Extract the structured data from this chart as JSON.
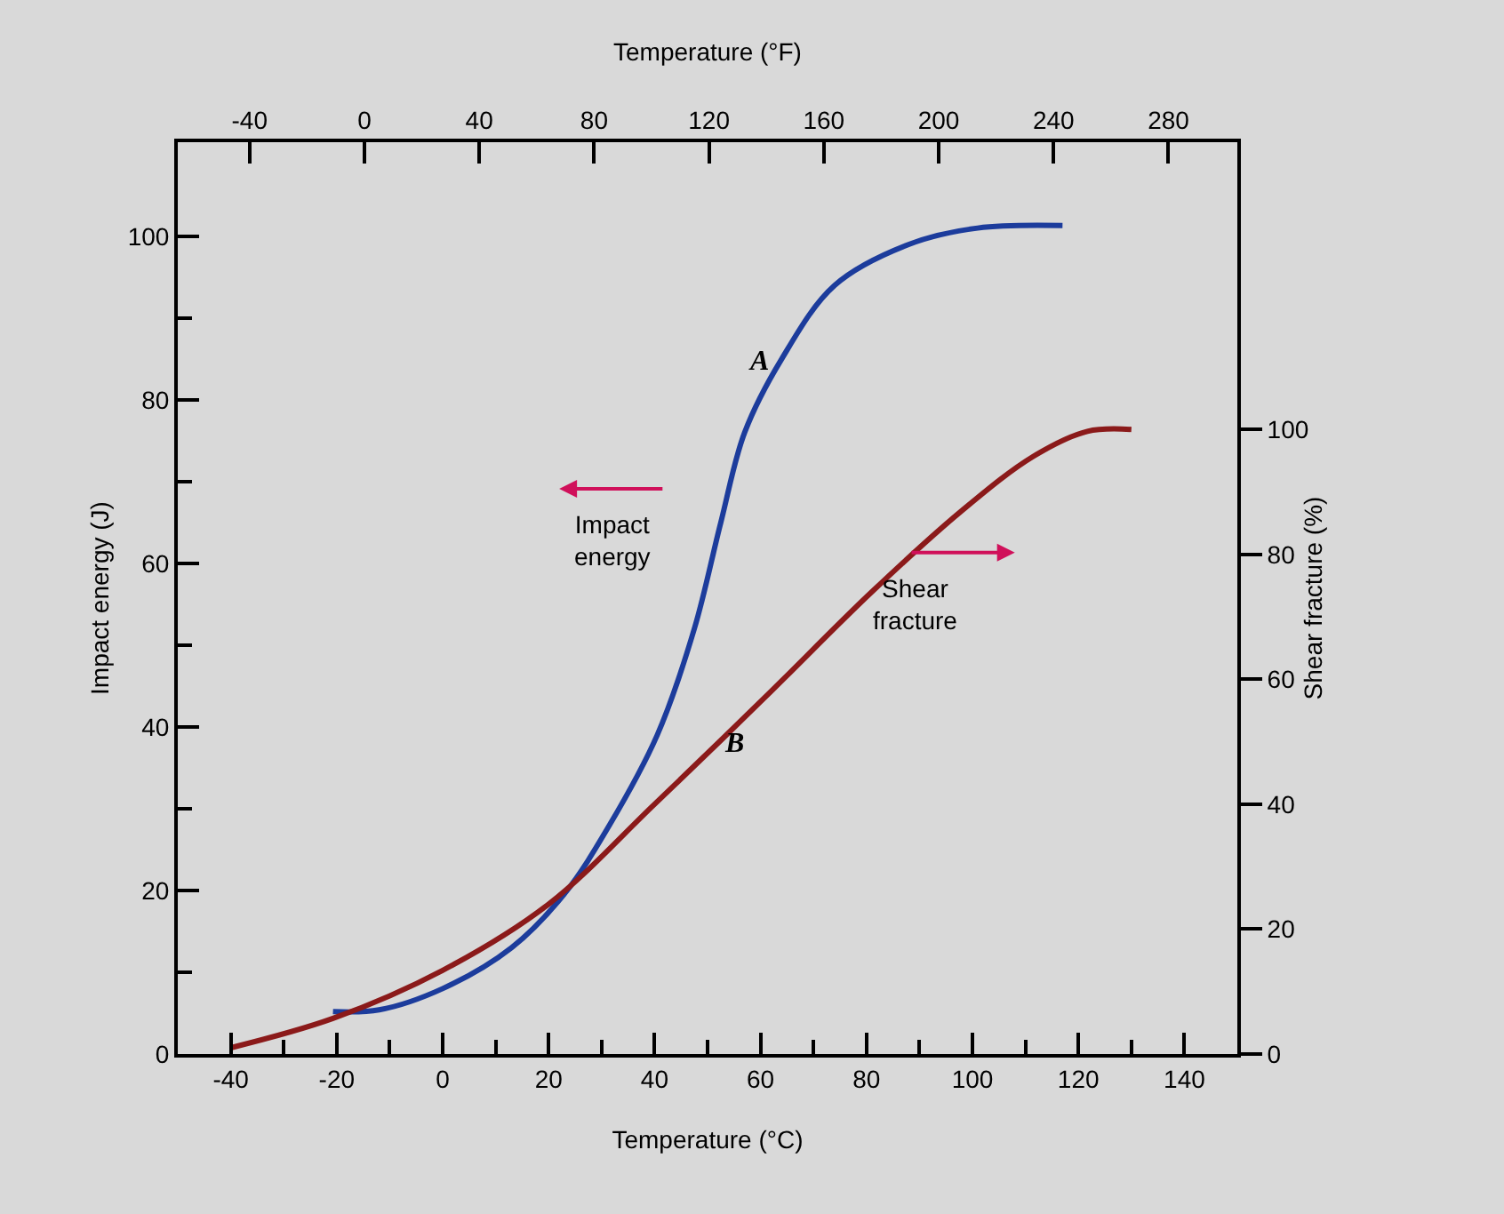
{
  "chart_data": {
    "type": "line",
    "xlabel": "Temperature (°C)",
    "x2label": "Temperature (°F)",
    "ylabel": "Impact energy (J)",
    "y2label": "Shear fracture (%)",
    "xlim": [
      -50,
      150
    ],
    "xticks": [
      -40,
      {
        "value": -30,
        "label": null
      },
      -20,
      {
        "value": -10,
        "label": null
      },
      0,
      {
        "value": 10,
        "label": null
      },
      20,
      {
        "value": 30,
        "label": null
      },
      40,
      {
        "value": 50,
        "label": null
      },
      60,
      {
        "value": 70,
        "label": null
      },
      80,
      {
        "value": 90,
        "label": null
      },
      100,
      {
        "value": 110,
        "label": null
      },
      120,
      {
        "value": 130,
        "label": null
      },
      140
    ],
    "x2lim": [
      -65,
      304
    ],
    "x2ticks": [
      -40,
      0,
      40,
      80,
      120,
      160,
      200,
      240,
      280
    ],
    "ylim": [
      0,
      111.5
    ],
    "yticks": [
      0,
      {
        "value": 10,
        "label": null
      },
      20,
      {
        "value": 30,
        "label": null
      },
      40,
      {
        "value": 50,
        "label": null
      },
      60,
      {
        "value": 70,
        "label": null
      },
      80,
      {
        "value": 90,
        "label": null
      },
      100
    ],
    "y2lim": [
      0,
      146
    ],
    "y2ticks": [
      0,
      20,
      40,
      60,
      80,
      100
    ],
    "grid": false,
    "marker": "none",
    "line_style": "solid",
    "series": [
      {
        "color": "#1c3c9c",
        "x": [
          -20.7,
          -12,
          0,
          13,
          23,
          31.5,
          40.5,
          47.5,
          52.5,
          57,
          64,
          74,
          88,
          101,
          117
        ],
        "values": [
          5.2,
          5.4,
          8,
          13,
          19.6,
          28,
          39,
          52,
          65,
          76,
          85,
          94,
          99,
          101,
          101.3
        ]
      },
      {
        "color": "#8b1a1a",
        "axis": "y2",
        "x": [
          -40,
          -20.7,
          0,
          20,
          40,
          60.7,
          81,
          98,
          111.5,
          121.7,
          130
        ],
        "values": [
          1,
          5.7,
          13.4,
          24,
          40,
          57,
          74,
          87,
          95.7,
          99.7,
          100
        ]
      }
    ],
    "annotations": [
      "A",
      "B",
      "Impact energy",
      "Shear fracture"
    ]
  }
}
